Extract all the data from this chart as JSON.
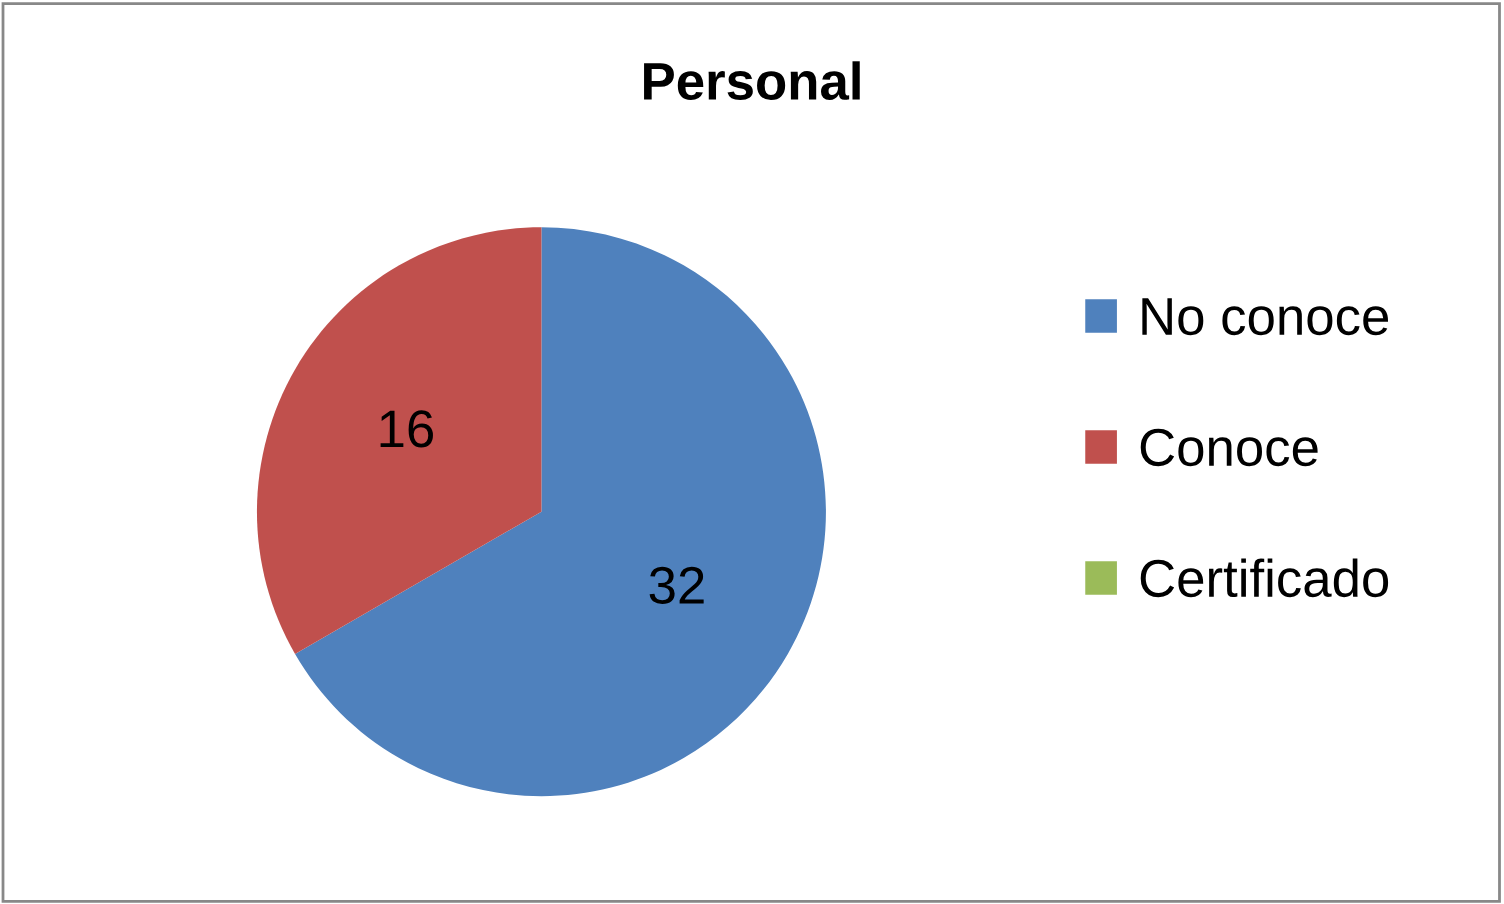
{
  "chart_data": {
    "type": "pie",
    "title": "Personal",
    "categories": [
      "No conoce",
      "Conoce",
      "Certificado"
    ],
    "values": [
      32,
      16,
      0
    ],
    "colors": [
      "#4f81bd",
      "#c0504d",
      "#9bbb59"
    ],
    "value_labels": [
      "32",
      "16",
      null
    ],
    "legend": "right"
  }
}
